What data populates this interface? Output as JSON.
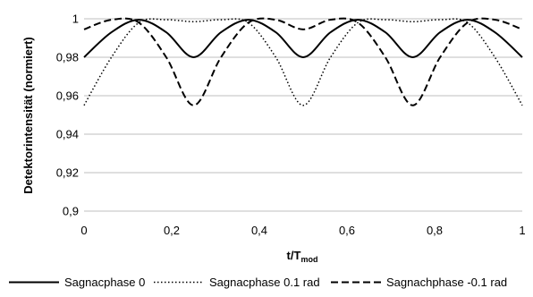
{
  "chart_data": {
    "type": "line",
    "xlabel_main": "t/T",
    "xlabel_sub": "mod",
    "ylabel": "Detektorintensität (normiert)",
    "xlim": [
      0,
      1
    ],
    "ylim": [
      0.9,
      1.0
    ],
    "x_ticks": [
      0,
      0.2,
      0.4,
      0.6,
      0.8,
      1
    ],
    "x_tick_labels": [
      "0",
      "0,2",
      "0,4",
      "0,6",
      "0,8",
      "1"
    ],
    "y_ticks": [
      0.9,
      0.92,
      0.94,
      0.96,
      0.98,
      1.0
    ],
    "y_tick_labels": [
      "0,9",
      "0,92",
      "0,94",
      "0,96",
      "0,98",
      "1"
    ],
    "grid": "horizontal",
    "legend_position": "bottom",
    "x": [
      0,
      0.0625,
      0.125,
      0.1875,
      0.25,
      0.3125,
      0.375,
      0.4375,
      0.5,
      0.5625,
      0.625,
      0.6875,
      0.75,
      0.8125,
      0.875,
      0.9375,
      1.0
    ],
    "series": [
      {
        "name": "Sagnacphase 0",
        "style": "solid",
        "values": [
          0.98,
          0.993,
          0.9995,
          0.993,
          0.98,
          0.993,
          0.9995,
          0.993,
          0.98,
          0.993,
          0.9995,
          0.993,
          0.98,
          0.993,
          0.9995,
          0.993,
          0.98
        ]
      },
      {
        "name": "Sagnacphase 0.1 rad",
        "style": "dotted",
        "values": [
          0.955,
          0.98,
          0.998,
          0.9995,
          0.9985,
          0.9995,
          0.998,
          0.98,
          0.955,
          0.98,
          0.998,
          0.9995,
          0.9985,
          0.9995,
          0.998,
          0.98,
          0.955
        ]
      },
      {
        "name": "Sagnachphase -0.1 rad",
        "style": "dashed",
        "values": [
          0.9945,
          0.9995,
          0.998,
          0.98,
          0.955,
          0.98,
          0.998,
          0.9995,
          0.9945,
          0.9995,
          0.998,
          0.98,
          0.955,
          0.98,
          0.998,
          0.9995,
          0.9945
        ]
      }
    ]
  }
}
